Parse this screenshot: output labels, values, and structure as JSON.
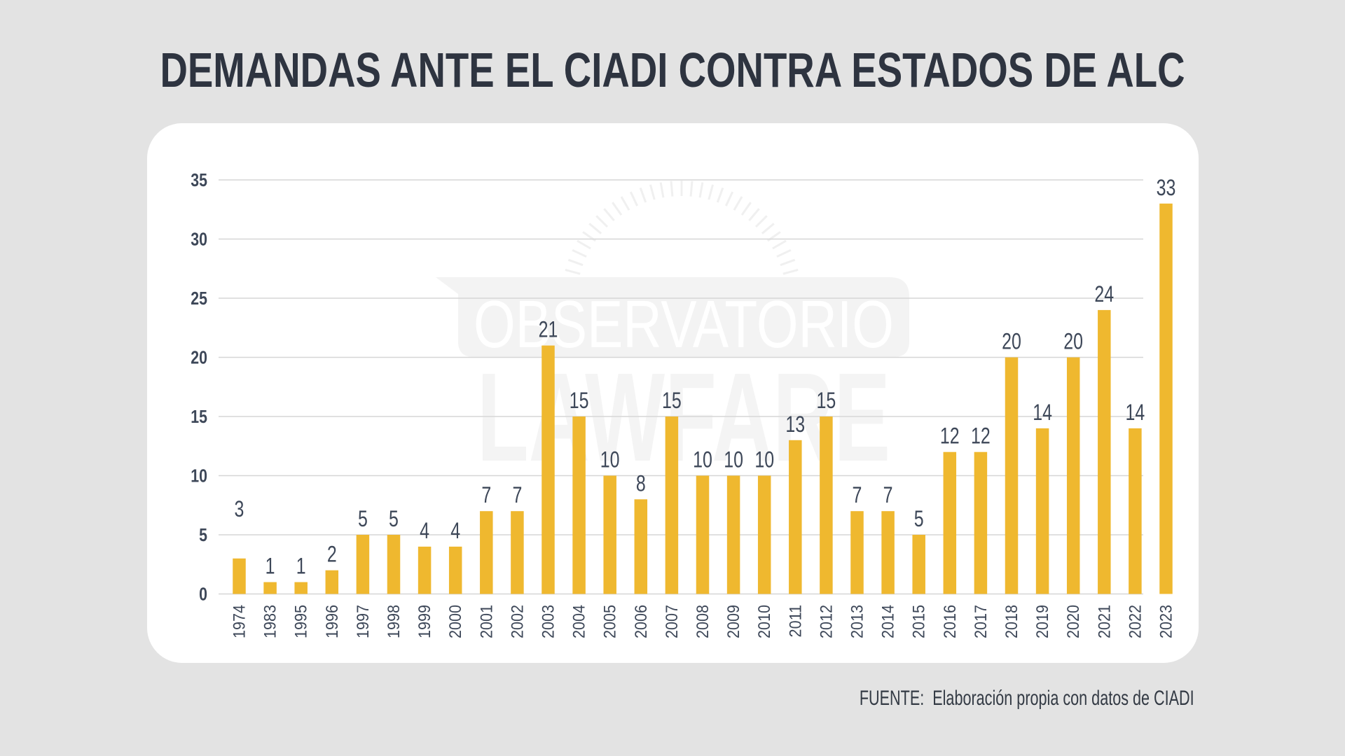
{
  "title": "DEMANDAS ANTE EL CIADI CONTRA ESTADOS DE ALC",
  "footer": "FUENTE:  Elaboración propia con datos de CIADI",
  "watermark": {
    "line1": "OBSERVATORIO",
    "line2": "LAWFARE",
    "icon": "sunburst-icon"
  },
  "colors": {
    "bar": "#efb82f",
    "text": "#3d4758",
    "grid": "#d6d6d6",
    "background": "#e3e3e3",
    "card": "#ffffff"
  },
  "chart_data": {
    "type": "bar",
    "title": "DEMANDAS ANTE EL CIADI CONTRA ESTADOS DE ALC",
    "xlabel": "",
    "ylabel": "",
    "ylim": [
      0,
      35
    ],
    "yticks": [
      0,
      5,
      10,
      15,
      20,
      25,
      30,
      35
    ],
    "grid": true,
    "legend": "none",
    "categories": [
      "1974",
      "1983",
      "1995",
      "1996",
      "1997",
      "1998",
      "1999",
      "2000",
      "2001",
      "2002",
      "2003",
      "2004",
      "2005",
      "2006",
      "2007",
      "2008",
      "2009",
      "2010",
      "2011",
      "2012",
      "2013",
      "2014",
      "2015",
      "2016",
      "2017",
      "2018",
      "2019",
      "2020",
      "2021",
      "2022",
      "2023"
    ],
    "values": [
      3,
      1,
      1,
      2,
      5,
      5,
      4,
      4,
      7,
      7,
      21,
      15,
      10,
      8,
      15,
      10,
      10,
      10,
      13,
      15,
      7,
      7,
      5,
      12,
      12,
      20,
      14,
      20,
      24,
      14,
      33
    ],
    "data_labels": [
      "3",
      "1",
      "1",
      "2",
      "5",
      "5",
      "4",
      "4",
      "7",
      "7",
      "21",
      "15",
      "10",
      "8",
      "15",
      "10",
      "10",
      "10",
      "13",
      "15",
      "7",
      "7",
      "5",
      "12",
      "12",
      "20",
      "14",
      "20",
      "24",
      "14",
      "33"
    ],
    "source": "FUENTE:  Elaboración propia con datos de CIADI"
  }
}
